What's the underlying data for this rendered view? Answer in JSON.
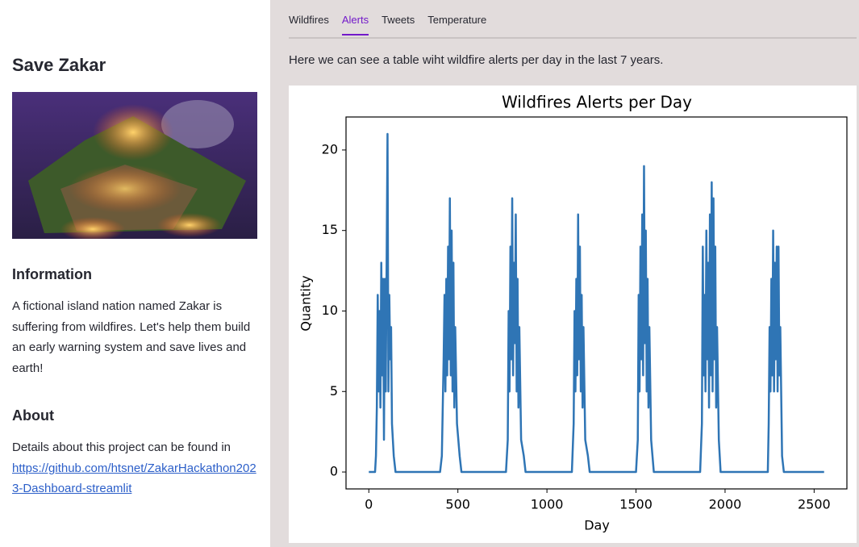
{
  "sidebar": {
    "title": "Save Zakar",
    "sections": [
      {
        "heading": "Information",
        "text": "A fictional island nation named Zakar is suffering from wildfires. Let's help them build an early warning system and save lives and earth!"
      },
      {
        "heading": "About",
        "text": "Details about this project can be found in",
        "link": "https://github.com/htsnet/ZakarHackathon2023-Dashboard-streamlit"
      }
    ]
  },
  "tabs": [
    "Wildfires",
    "Alerts",
    "Tweets",
    "Temperature"
  ],
  "active_tab": 1,
  "description": "Here we can see a table wiht wildfire alerts per day in the last 7 years.",
  "chart_data": {
    "type": "line",
    "title": "Wildfires Alerts per Day",
    "x_label": "Day",
    "y_label": "Quantity",
    "color": "#2f75b5",
    "x": [
      0,
      35,
      40,
      45,
      50,
      55,
      60,
      65,
      70,
      75,
      80,
      85,
      90,
      95,
      100,
      105,
      110,
      115,
      120,
      125,
      130,
      140,
      150,
      400,
      410,
      420,
      425,
      430,
      435,
      440,
      445,
      450,
      455,
      460,
      465,
      470,
      475,
      480,
      485,
      495,
      510,
      520,
      770,
      780,
      785,
      790,
      795,
      800,
      805,
      810,
      815,
      820,
      825,
      830,
      835,
      840,
      845,
      855,
      870,
      880,
      1140,
      1150,
      1155,
      1160,
      1165,
      1170,
      1175,
      1180,
      1185,
      1190,
      1195,
      1200,
      1205,
      1215,
      1230,
      1240,
      1500,
      1510,
      1515,
      1520,
      1525,
      1530,
      1535,
      1540,
      1545,
      1550,
      1555,
      1560,
      1565,
      1570,
      1575,
      1585,
      1600,
      1860,
      1870,
      1875,
      1880,
      1885,
      1890,
      1895,
      1900,
      1905,
      1910,
      1915,
      1920,
      1925,
      1930,
      1935,
      1940,
      1945,
      1950,
      1955,
      1965,
      1975,
      2240,
      2245,
      2250,
      2255,
      2260,
      2265,
      2270,
      2275,
      2280,
      2285,
      2290,
      2295,
      2300,
      2305,
      2310,
      2320,
      2330,
      2556
    ],
    "values": [
      0,
      0,
      1,
      4,
      11,
      5,
      10,
      4,
      13,
      6,
      12,
      2,
      12,
      5,
      13,
      21,
      5,
      11,
      7,
      9,
      3,
      1,
      0,
      0,
      1,
      7,
      11,
      5,
      12,
      6,
      14,
      7,
      17,
      6,
      15,
      5,
      13,
      4,
      9,
      3,
      1,
      0,
      0,
      2,
      10,
      5,
      14,
      7,
      17,
      6,
      13,
      8,
      16,
      5,
      12,
      4,
      9,
      2,
      1,
      0,
      0,
      3,
      10,
      5,
      12,
      6,
      16,
      7,
      14,
      5,
      11,
      4,
      9,
      2,
      1,
      0,
      0,
      2,
      11,
      5,
      14,
      7,
      16,
      6,
      19,
      8,
      15,
      5,
      12,
      4,
      9,
      2,
      0,
      0,
      3,
      14,
      6,
      11,
      5,
      15,
      7,
      13,
      4,
      16,
      6,
      18,
      5,
      17,
      7,
      14,
      4,
      9,
      2,
      0,
      0,
      3,
      9,
      5,
      12,
      6,
      15,
      5,
      13,
      7,
      14,
      5,
      14,
      6,
      9,
      1,
      0,
      0
    ],
    "xlim": [
      -128,
      2684
    ],
    "ylim": [
      -1.05,
      22.05
    ],
    "xticks": [
      0,
      500,
      1000,
      1500,
      2000,
      2500
    ],
    "yticks": [
      0,
      5,
      10,
      15,
      20
    ]
  }
}
